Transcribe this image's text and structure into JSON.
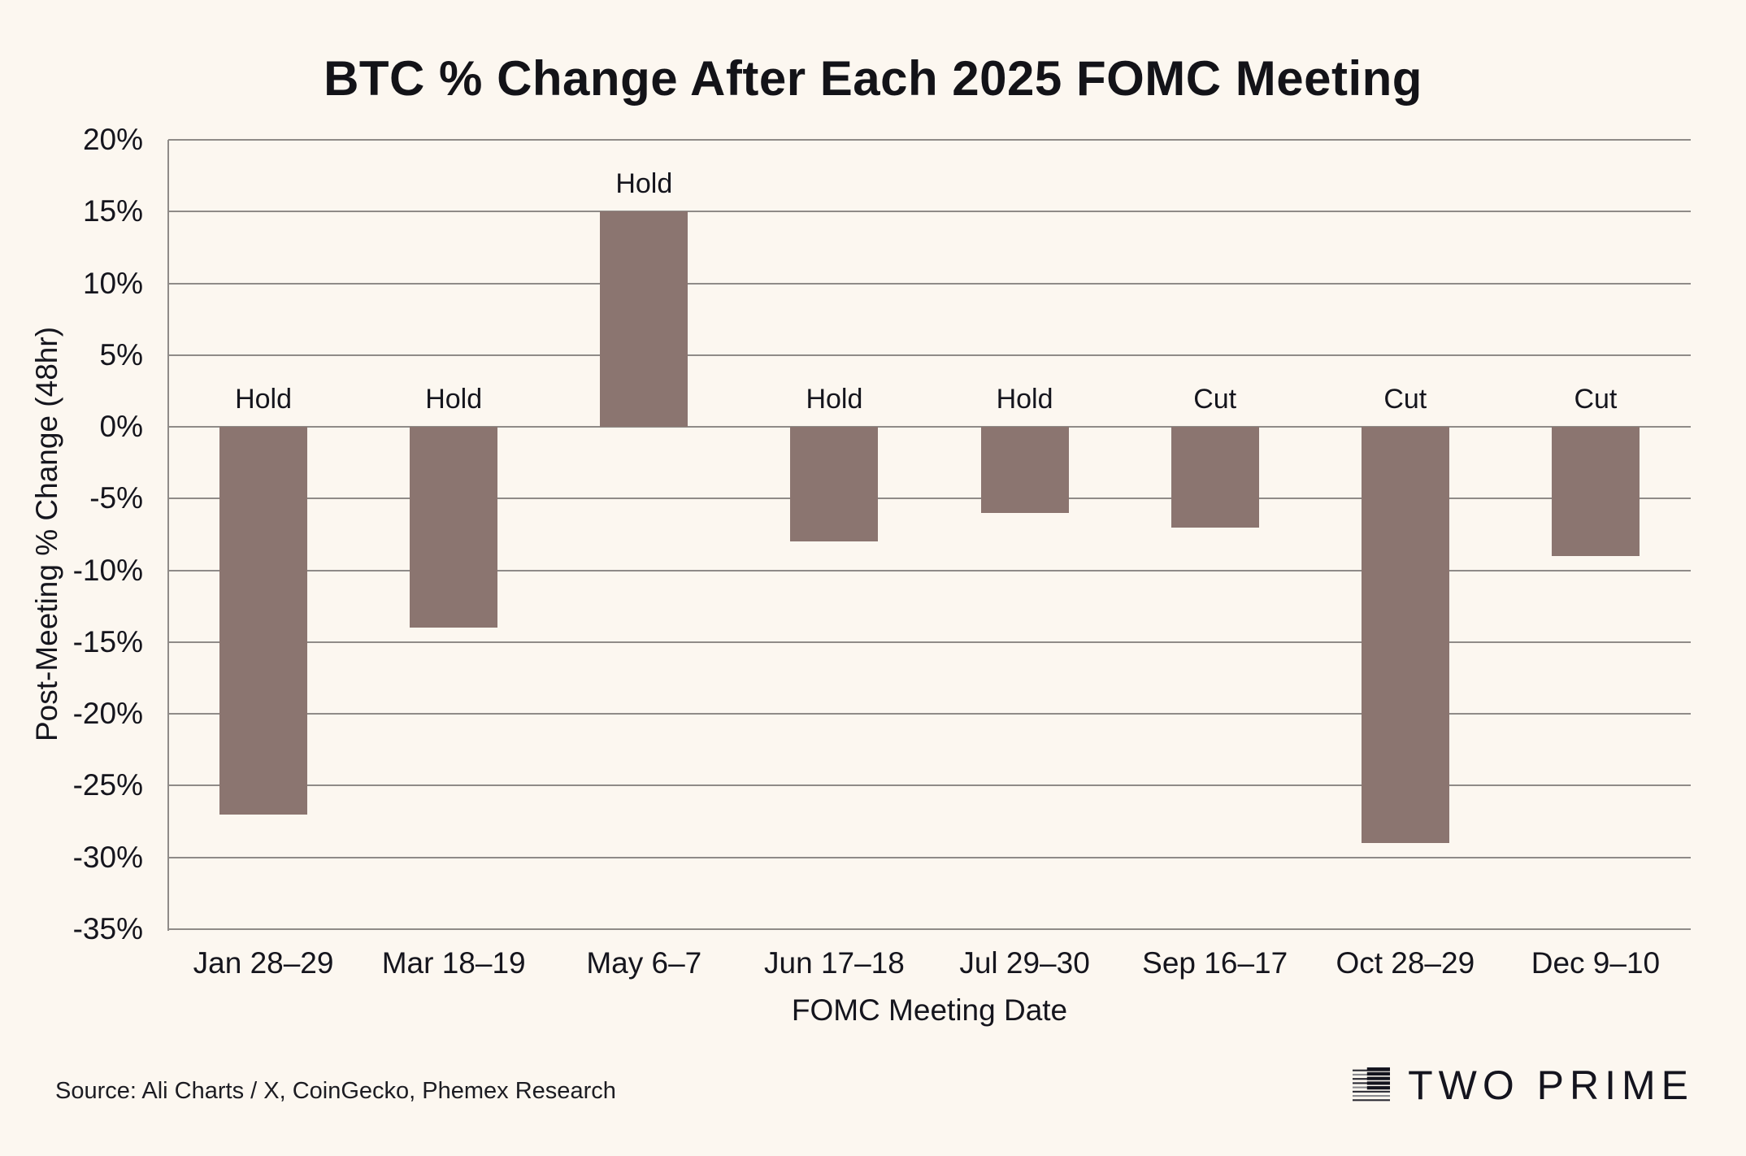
{
  "chart_data": {
    "type": "bar",
    "title": "BTC % Change After Each 2025 FOMC Meeting",
    "xlabel": "FOMC Meeting Date",
    "ylabel": "Post-Meeting % Change (48hr)",
    "categories": [
      "Jan 28–29",
      "Mar 18–19",
      "May 6–7",
      "Jun 17–18",
      "Jul 29–30",
      "Sep 16–17",
      "Oct 28–29",
      "Dec 9–10"
    ],
    "values": [
      -27,
      -14,
      15,
      -8,
      -6,
      -7,
      -29,
      -9
    ],
    "bar_labels": [
      "Hold",
      "Hold",
      "Hold",
      "Hold",
      "Hold",
      "Cut",
      "Cut",
      "Cut"
    ],
    "ylim": [
      -35,
      20
    ],
    "ytick_step": 5,
    "ytick_labels": [
      "20%",
      "15%",
      "10%",
      "5%",
      "0%",
      "-5%",
      "-10%",
      "-15%",
      "-20%",
      "-25%",
      "-30%",
      "-35%"
    ],
    "grid": true,
    "legend": "none",
    "bar_color": "#8B7570",
    "background_color": "#FCF7F0",
    "grid_color": "#8F8B88"
  },
  "footer": {
    "source": "Source: Ali Charts / X, CoinGecko, Phemex Research",
    "brand": "TWO PRIME"
  }
}
